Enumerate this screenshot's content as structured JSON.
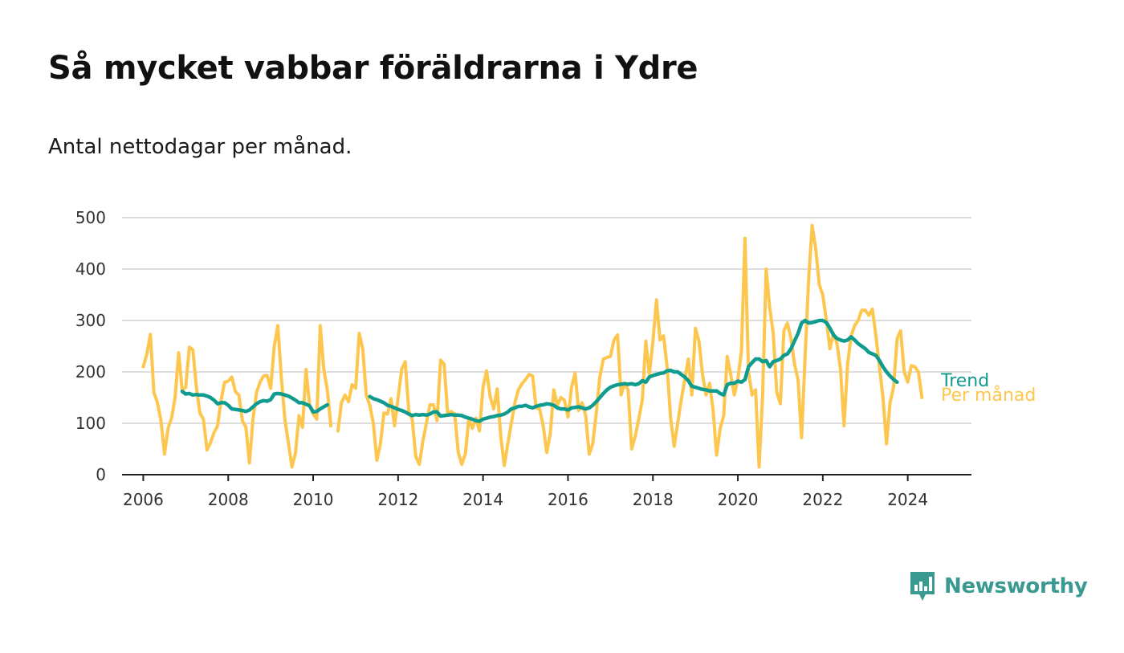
{
  "title": "Så mycket vabbar föräldrarna i Ydre",
  "subtitle": "Antal nettodagar per månad.",
  "brand": {
    "name": "Newsworthy",
    "icon": "bar-chart-speech-bubble-icon",
    "color": "#3a9a91"
  },
  "colors": {
    "trend": "#0f9c8f",
    "monthly": "#fdc74f",
    "grid": "#dddddd",
    "axis": "#222222"
  },
  "chart_data": {
    "type": "line",
    "title": "Så mycket vabbar föräldrarna i Ydre",
    "subtitle": "Antal nettodagar per månad.",
    "xlabel": "",
    "ylabel": "",
    "ylim": [
      0,
      500
    ],
    "xlim": [
      "2005-07",
      "2025-07"
    ],
    "y_ticks": [
      0,
      100,
      200,
      300,
      400,
      500
    ],
    "x_ticks": [
      "2006",
      "2008",
      "2010",
      "2012",
      "2014",
      "2016",
      "2018",
      "2020",
      "2022",
      "2024"
    ],
    "grid": true,
    "legend": "direct labels at line ends (right)",
    "series": [
      {
        "name": "Per månad",
        "color": "#fdc74f",
        "start": "2006-01",
        "values": [
          210,
          235,
          273,
          160,
          140,
          105,
          40,
          90,
          110,
          150,
          237,
          165,
          170,
          248,
          243,
          170,
          120,
          108,
          48,
          62,
          82,
          95,
          145,
          180,
          182,
          190,
          162,
          155,
          105,
          92,
          23,
          108,
          160,
          180,
          192,
          193,
          168,
          250,
          290,
          190,
          108,
          62,
          15,
          42,
          115,
          92,
          205,
          135,
          118,
          108,
          290,
          205,
          165,
          95,
          null,
          85,
          140,
          155,
          142,
          175,
          168,
          275,
          245,
          155,
          135,
          100,
          28,
          60,
          120,
          118,
          148,
          95,
          150,
          205,
          220,
          125,
          107,
          35,
          20,
          65,
          100,
          136,
          136,
          105,
          223,
          215,
          118,
          123,
          118,
          43,
          20,
          40,
          110,
          90,
          110,
          85,
          170,
          202,
          152,
          128,
          167,
          75,
          18,
          60,
          100,
          140,
          165,
          177,
          185,
          195,
          192,
          130,
          128,
          95,
          43,
          80,
          165,
          135,
          150,
          145,
          112,
          170,
          198,
          125,
          140,
          115,
          40,
          60,
          120,
          190,
          225,
          228,
          230,
          262,
          272,
          155,
          178,
          165,
          50,
          75,
          108,
          145,
          260,
          195,
          260,
          340,
          262,
          270,
          210,
          110,
          55,
          100,
          145,
          185,
          225,
          155,
          285,
          260,
          195,
          155,
          178,
          125,
          38,
          90,
          115,
          230,
          195,
          155,
          185,
          240,
          460,
          200,
          155,
          165,
          15,
          155,
          400,
          325,
          275,
          160,
          138,
          280,
          295,
          265,
          215,
          185,
          72,
          230,
          380,
          485,
          440,
          370,
          350,
          300,
          245,
          275,
          255,
          205,
          95,
          215,
          270,
          290,
          300,
          320,
          320,
          310,
          322,
          270,
          210,
          150,
          60,
          140,
          170,
          265,
          280,
          200,
          180,
          212,
          210,
          200,
          150
        ]
      },
      {
        "name": "Trend",
        "color": "#0f9c8f",
        "start": "2006-12",
        "values": [
          162,
          157,
          158,
          155,
          156,
          155,
          155,
          153,
          150,
          145,
          138,
          140,
          140,
          135,
          128,
          127,
          126,
          125,
          123,
          126,
          132,
          138,
          142,
          144,
          143,
          146,
          157,
          158,
          157,
          155,
          153,
          149,
          145,
          140,
          140,
          137,
          134,
          122,
          123,
          128,
          132,
          136,
          null,
          null,
          null,
          null,
          null,
          null,
          null,
          null,
          null,
          null,
          null,
          152,
          148,
          146,
          143,
          140,
          135,
          133,
          130,
          127,
          125,
          122,
          118,
          115,
          117,
          116,
          117,
          116,
          118,
          122,
          122,
          114,
          115,
          116,
          117,
          116,
          116,
          115,
          112,
          110,
          108,
          105,
          104,
          108,
          110,
          112,
          113,
          115,
          116,
          118,
          122,
          128,
          130,
          133,
          133,
          135,
          132,
          130,
          133,
          135,
          136,
          138,
          137,
          135,
          130,
          128,
          128,
          126,
          130,
          131,
          132,
          130,
          128,
          130,
          135,
          142,
          150,
          158,
          165,
          170,
          173,
          175,
          176,
          177,
          176,
          177,
          175,
          177,
          183,
          180,
          190,
          193,
          195,
          197,
          198,
          202,
          203,
          200,
          200,
          195,
          190,
          183,
          172,
          170,
          168,
          166,
          165,
          163,
          163,
          163,
          158,
          155,
          175,
          178,
          178,
          182,
          180,
          185,
          210,
          218,
          225,
          225,
          220,
          222,
          210,
          220,
          222,
          225,
          232,
          235,
          245,
          260,
          275,
          295,
          300,
          295,
          296,
          298,
          300,
          300,
          296,
          285,
          272,
          265,
          262,
          260,
          262,
          268,
          262,
          255,
          250,
          245,
          238,
          235,
          232,
          222,
          210,
          200,
          192,
          185,
          180
        ]
      }
    ]
  }
}
